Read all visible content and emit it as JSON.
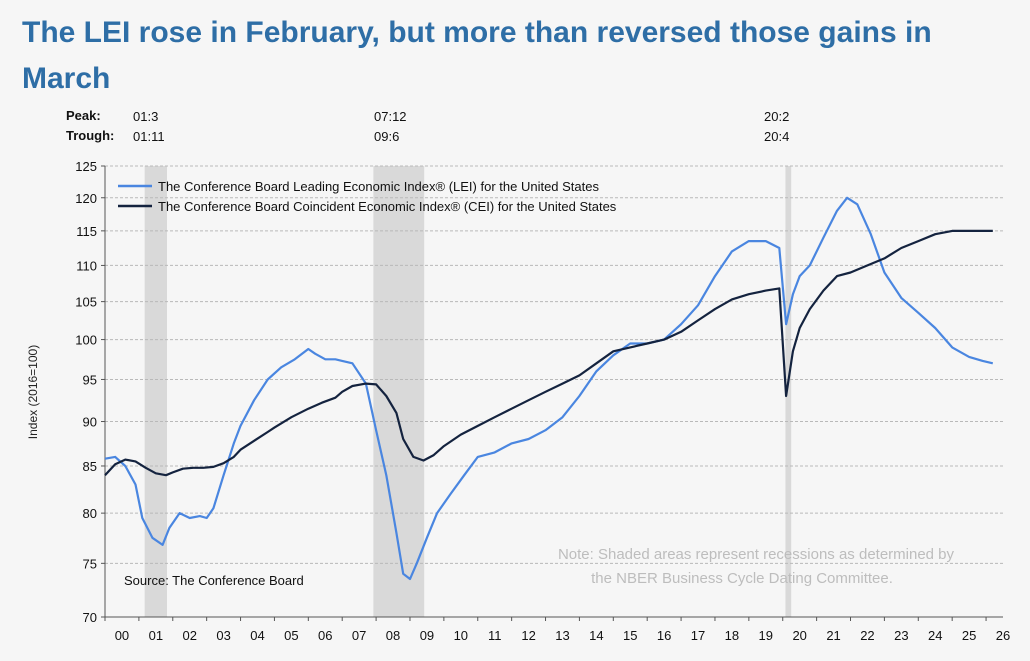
{
  "title": "The LEI rose in February, but more than reversed those gains in March",
  "peak_label": "Peak:",
  "trough_label": "Trough:",
  "recessions": [
    {
      "peak": "01:3",
      "trough": "01:11",
      "start": 2001.17,
      "end": 2001.83
    },
    {
      "peak": "07:12",
      "trough": "09:6",
      "start": 2007.92,
      "end": 2009.42
    },
    {
      "peak": "20:2",
      "trough": "20:4",
      "start": 2020.08,
      "end": 2020.25
    }
  ],
  "source": "Source: The Conference Board",
  "note_line1": "Note: Shaded areas represent recessions as determined by",
  "note_line2": "the NBER Business Cycle Dating Committee.",
  "colors": {
    "lei": "#4a86e0",
    "cei": "#14233f",
    "recession": "#d9d9d9",
    "grid": "#b9b9b9",
    "title": "#2e6ea6"
  },
  "chart_data": {
    "type": "line",
    "ylabel": "Index (2016=100)",
    "y_scale": "log",
    "ylim": [
      70,
      125
    ],
    "yticks": [
      70,
      75,
      80,
      85,
      90,
      95,
      100,
      105,
      110,
      115,
      120,
      125
    ],
    "xlim": [
      2000,
      2026.5
    ],
    "xtick_labels": [
      "00",
      "01",
      "02",
      "03",
      "04",
      "05",
      "06",
      "07",
      "08",
      "09",
      "10",
      "11",
      "12",
      "13",
      "14",
      "15",
      "16",
      "17",
      "18",
      "19",
      "20",
      "21",
      "22",
      "23",
      "24",
      "25",
      "26"
    ],
    "grid": true,
    "legend_position": "top-left",
    "series": [
      {
        "name": "The Conference Board Leading Economic Index® (LEI) for the United States",
        "color": "#4a86e0",
        "x": [
          2000.0,
          2000.3,
          2000.6,
          2000.9,
          2001.1,
          2001.4,
          2001.7,
          2001.9,
          2002.2,
          2002.5,
          2002.8,
          2003.0,
          2003.2,
          2003.5,
          2003.8,
          2004.0,
          2004.4,
          2004.8,
          2005.2,
          2005.6,
          2006.0,
          2006.2,
          2006.5,
          2006.8,
          2007.0,
          2007.3,
          2007.7,
          2008.0,
          2008.3,
          2008.6,
          2008.8,
          2009.0,
          2009.2,
          2009.5,
          2009.8,
          2010.2,
          2010.6,
          2011.0,
          2011.5,
          2012.0,
          2012.5,
          2013.0,
          2013.5,
          2014.0,
          2014.5,
          2015.0,
          2015.5,
          2016.0,
          2016.5,
          2017.0,
          2017.5,
          2018.0,
          2018.5,
          2019.0,
          2019.5,
          2019.9,
          2020.1,
          2020.3,
          2020.5,
          2020.8,
          2021.2,
          2021.6,
          2021.9,
          2022.2,
          2022.6,
          2023.0,
          2023.5,
          2024.0,
          2024.5,
          2025.0,
          2025.5,
          2025.9,
          2026.2
        ],
        "y": [
          85.8,
          86.0,
          85.0,
          83.0,
          79.5,
          77.5,
          76.8,
          78.5,
          80.0,
          79.5,
          79.7,
          79.5,
          80.5,
          84.0,
          87.5,
          89.5,
          92.5,
          95.0,
          96.5,
          97.5,
          98.8,
          98.2,
          97.5,
          97.5,
          97.3,
          97.0,
          94.5,
          89.0,
          84.0,
          78.0,
          74.0,
          73.5,
          75.0,
          77.5,
          80.0,
          82.0,
          84.0,
          86.0,
          86.5,
          87.5,
          88.0,
          89.0,
          90.5,
          93.0,
          96.0,
          98.0,
          99.5,
          99.5,
          100.0,
          102.0,
          104.5,
          108.5,
          112.0,
          113.5,
          113.5,
          112.5,
          102.0,
          106.0,
          108.5,
          110.0,
          114.0,
          118.0,
          120.0,
          119.0,
          114.5,
          109.0,
          105.5,
          103.5,
          101.5,
          99.0,
          97.8,
          97.3,
          97.0
        ]
      },
      {
        "name": "The Conference Board Coincident Economic Index® (CEI) for the United States",
        "color": "#14233f",
        "x": [
          2000.0,
          2000.3,
          2000.6,
          2000.9,
          2001.2,
          2001.5,
          2001.8,
          2002.0,
          2002.3,
          2002.6,
          2002.9,
          2003.2,
          2003.5,
          2003.8,
          2004.0,
          2004.4,
          2004.8,
          2005.0,
          2005.5,
          2006.0,
          2006.4,
          2006.8,
          2007.0,
          2007.3,
          2007.7,
          2008.0,
          2008.3,
          2008.6,
          2008.8,
          2009.1,
          2009.4,
          2009.7,
          2010.0,
          2010.5,
          2011.0,
          2011.5,
          2012.0,
          2012.5,
          2013.0,
          2013.5,
          2014.0,
          2014.5,
          2015.0,
          2015.5,
          2016.0,
          2016.5,
          2017.0,
          2017.5,
          2018.0,
          2018.5,
          2019.0,
          2019.5,
          2019.9,
          2020.1,
          2020.3,
          2020.5,
          2020.8,
          2021.2,
          2021.6,
          2022.0,
          2022.5,
          2023.0,
          2023.5,
          2024.0,
          2024.5,
          2025.0,
          2025.5,
          2026.2
        ],
        "y": [
          84.0,
          85.2,
          85.7,
          85.5,
          84.8,
          84.2,
          84.0,
          84.3,
          84.7,
          84.8,
          84.8,
          84.9,
          85.3,
          86.0,
          86.8,
          87.8,
          88.8,
          89.3,
          90.5,
          91.5,
          92.2,
          92.8,
          93.5,
          94.2,
          94.5,
          94.4,
          93.0,
          91.0,
          88.0,
          86.0,
          85.6,
          86.2,
          87.2,
          88.5,
          89.5,
          90.5,
          91.5,
          92.5,
          93.5,
          94.5,
          95.5,
          97.0,
          98.5,
          99.0,
          99.5,
          100.0,
          101.0,
          102.5,
          104.0,
          105.3,
          106.0,
          106.5,
          106.8,
          93.0,
          98.5,
          101.5,
          104.0,
          106.5,
          108.5,
          109.0,
          110.0,
          111.0,
          112.5,
          113.5,
          114.5,
          115.0,
          115.0,
          115.0
        ]
      }
    ]
  }
}
